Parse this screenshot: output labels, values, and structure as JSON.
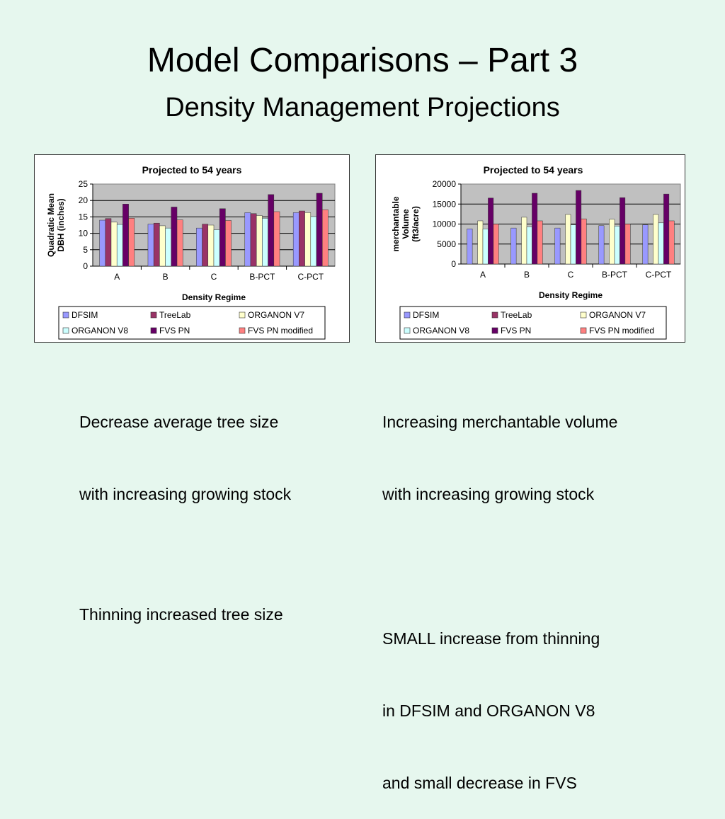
{
  "slide": {
    "title": "Model Comparisons – Part 3",
    "subtitle": "Density Management Projections"
  },
  "notes": {
    "left": [
      "Decrease average tree size",
      "with increasing growing stock",
      "",
      "Thinning increased tree size"
    ],
    "right": [
      "Increasing merchantable volume",
      "with increasing growing stock",
      "",
      "SMALL increase from thinning",
      "in DFSIM and ORGANON V8",
      "and small decrease in FVS"
    ]
  },
  "chart_data": [
    {
      "type": "bar",
      "title": "Projected to 54 years",
      "xlabel": "Density Regime",
      "ylabel": "Quadratic Mean DBH (inches)",
      "ylabel_lines": [
        "Quadratic Mean",
        "DBH (inches)"
      ],
      "ylim": [
        0,
        25
      ],
      "yticks": [
        0,
        5,
        10,
        15,
        20,
        25
      ],
      "grid": true,
      "legend_position": "bottom",
      "categories": [
        "A",
        "B",
        "C",
        "B-PCT",
        "C-PCT"
      ],
      "series": [
        {
          "name": "DFSIM",
          "color": "#9999ff",
          "values": [
            14.0,
            12.8,
            11.6,
            16.3,
            16.3
          ]
        },
        {
          "name": "TreeLab",
          "color": "#993366",
          "values": [
            14.5,
            13.1,
            12.8,
            16.0,
            16.8
          ]
        },
        {
          "name": "ORGANON V7",
          "color": "#ffffcc",
          "values": [
            13.4,
            12.3,
            12.5,
            15.4,
            16.3
          ]
        },
        {
          "name": "ORGANON V8",
          "color": "#ccffff",
          "values": [
            12.7,
            11.6,
            11.1,
            14.6,
            15.1
          ]
        },
        {
          "name": "FVS PN",
          "color": "#660066",
          "values": [
            18.9,
            18.0,
            17.5,
            21.8,
            22.2
          ]
        },
        {
          "name": "FVS PN modified",
          "color": "#ff8080",
          "values": [
            14.6,
            14.1,
            13.9,
            16.6,
            17.2
          ]
        }
      ]
    },
    {
      "type": "bar",
      "title": "Projected to 54 years",
      "xlabel": "Density Regime",
      "ylabel": "merchantable Volume (ft3/acre)",
      "ylabel_lines": [
        "merchantable",
        "Volume",
        "(ft3/acre)"
      ],
      "ylim": [
        0,
        20000
      ],
      "yticks": [
        0,
        5000,
        10000,
        15000,
        20000
      ],
      "grid": true,
      "legend_position": "bottom",
      "categories": [
        "A",
        "B",
        "C",
        "B-PCT",
        "C-PCT"
      ],
      "series": [
        {
          "name": "DFSIM",
          "color": "#9999ff",
          "values": [
            8800,
            9000,
            9000,
            9600,
            9800
          ]
        },
        {
          "name": "TreeLab",
          "color": "#993366",
          "values": [
            0,
            0,
            0,
            0,
            0
          ]
        },
        {
          "name": "ORGANON V7",
          "color": "#ffffcc",
          "values": [
            10800,
            11700,
            12400,
            11200,
            12400
          ]
        },
        {
          "name": "ORGANON V8",
          "color": "#ccffff",
          "values": [
            8800,
            9300,
            9800,
            9500,
            10300
          ]
        },
        {
          "name": "FVS PN",
          "color": "#660066",
          "values": [
            16500,
            17700,
            18400,
            16600,
            17500
          ]
        },
        {
          "name": "FVS PN modified",
          "color": "#ff8080",
          "values": [
            10000,
            10800,
            11300,
            10000,
            10800
          ]
        }
      ]
    }
  ]
}
